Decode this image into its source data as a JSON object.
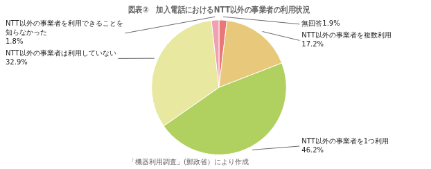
{
  "chart_data": {
    "type": "pie",
    "title": "図表②　加入電話におけるNTT以外の事業者の利用状況",
    "annotations": [
      "「機器利用調査」(郵政省）により作成"
    ],
    "values": [
      1.9,
      17.2,
      46.2,
      32.9,
      1.8
    ],
    "value_labels": [
      "無回答1.9%",
      "NTT以外の事業者を複数利用\n17.2%",
      "NTT以外の事業者を1つ利用\n46.2%",
      "NTT以外の事業者は利用していない\n32.9%",
      "NTT以外の事業者を利用できることを\n知らなかった\n1.8%"
    ],
    "colors": [
      "#e87878",
      "#e8c87a",
      "#b0d060",
      "#e8e8a0",
      "#f0a0b0"
    ],
    "data_labels": true
  }
}
